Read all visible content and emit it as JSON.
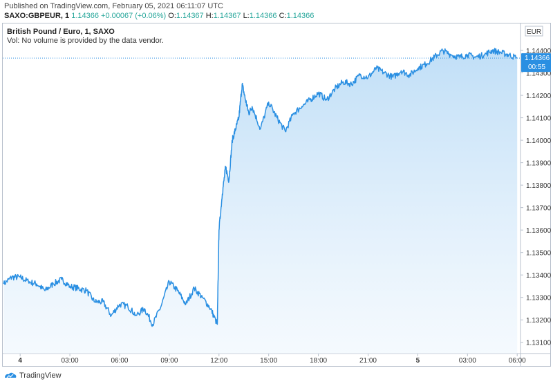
{
  "header": {
    "published": "Published on TradingView.com, February 05, 2021 06:11:07 UTC",
    "symbol": "SAXO:GBPEUR, 1",
    "last": "1.14366",
    "change": "+0.00067 (+0.06%)",
    "open_label": "O:",
    "open": "1.14367",
    "high_label": "H:",
    "high": "1.14367",
    "low_label": "L:",
    "low": "1.14366",
    "close_label": "C:",
    "close": "1.14366"
  },
  "chart_title": "British Pound / Euro, 1, SAXO",
  "volume_note": "Vol: No volume is provided by the data vendor.",
  "footer": {
    "brand": "TradingView",
    "logo_icon": "tradingview-logo-icon"
  },
  "colors": {
    "line": "#2a8fe2",
    "area_top": "#b9dbf6",
    "area_bottom": "#eef6fd",
    "price_tag": "#2a8fe2",
    "change_green": "#26a69a"
  },
  "chart_data": {
    "type": "area",
    "currency_label": "EUR",
    "current_price": "1.14366",
    "countdown": "00:55",
    "ylim": [
      1.1305,
      1.1452
    ],
    "y_ticks": [
      "1.14400",
      "1.14300",
      "1.14200",
      "1.14100",
      "1.14000",
      "1.13900",
      "1.13800",
      "1.13700",
      "1.13600",
      "1.13500",
      "1.13400",
      "1.13300",
      "1.13200",
      "1.13100"
    ],
    "x_ticks": [
      {
        "label": "4",
        "bold": true,
        "t": 0
      },
      {
        "label": "03:00",
        "bold": false,
        "t": 3
      },
      {
        "label": "06:00",
        "bold": false,
        "t": 6
      },
      {
        "label": "09:00",
        "bold": false,
        "t": 9
      },
      {
        "label": "12:00",
        "bold": false,
        "t": 12
      },
      {
        "label": "15:00",
        "bold": false,
        "t": 15
      },
      {
        "label": "18:00",
        "bold": false,
        "t": 18
      },
      {
        "label": "21:00",
        "bold": false,
        "t": 21
      },
      {
        "label": "5",
        "bold": true,
        "t": 24
      },
      {
        "label": "03:00",
        "bold": false,
        "t": 27
      },
      {
        "label": "06:00",
        "bold": false,
        "t": 30
      }
    ],
    "xlim": [
      -1.05,
      30.2
    ],
    "series": [
      {
        "x": [
          -1.0,
          -0.5,
          0,
          0.5,
          1.0,
          1.5,
          2.0,
          2.5,
          3.0,
          3.5,
          4.0,
          4.5,
          5.0,
          5.5,
          6.0,
          6.5,
          7.0,
          7.5,
          8.0,
          8.5,
          9.0,
          9.5,
          10.0,
          10.5,
          11.0,
          11.5,
          11.9,
          12.0,
          12.2,
          12.4,
          12.6,
          12.8,
          13.0,
          13.2,
          13.4,
          13.6,
          13.8,
          14.0,
          14.5,
          15.0,
          15.5,
          16.0,
          16.5,
          17.0,
          17.5,
          18.0,
          18.5,
          19.0,
          19.5,
          20.0,
          20.5,
          21.0,
          21.5,
          22.0,
          22.5,
          23.0,
          23.5,
          24.0,
          24.5,
          25.0,
          25.5,
          26.0,
          26.5,
          27.0,
          27.5,
          28.0,
          28.5,
          29.0,
          29.5,
          30.0
        ],
        "y": [
          1.1336,
          1.1339,
          1.1339,
          1.1337,
          1.1336,
          1.1333,
          1.1336,
          1.1338,
          1.1335,
          1.1334,
          1.1333,
          1.1328,
          1.1328,
          1.1322,
          1.1327,
          1.1326,
          1.1322,
          1.1325,
          1.1318,
          1.1326,
          1.1337,
          1.1333,
          1.1327,
          1.1334,
          1.133,
          1.1325,
          1.1318,
          1.136,
          1.1376,
          1.1388,
          1.1382,
          1.14,
          1.1405,
          1.141,
          1.1425,
          1.1418,
          1.1412,
          1.1415,
          1.1405,
          1.1417,
          1.141,
          1.1404,
          1.1412,
          1.1415,
          1.1418,
          1.1421,
          1.1418,
          1.1423,
          1.1426,
          1.1425,
          1.1429,
          1.1428,
          1.1432,
          1.143,
          1.1428,
          1.1431,
          1.1429,
          1.1432,
          1.1434,
          1.1437,
          1.144,
          1.1438,
          1.1437,
          1.1438,
          1.1437,
          1.1438,
          1.144,
          1.1439,
          1.1438,
          1.14366
        ]
      }
    ]
  }
}
